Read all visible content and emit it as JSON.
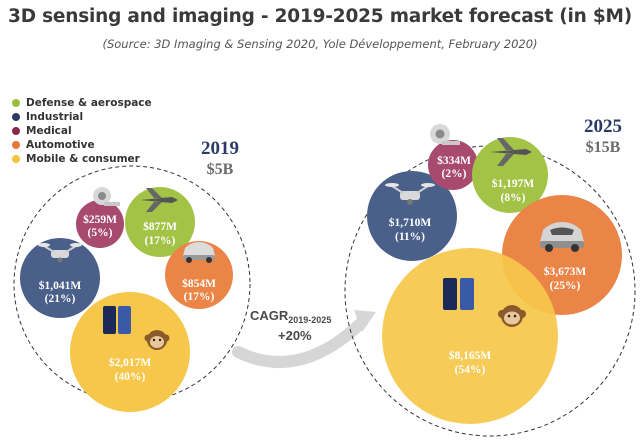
{
  "title": "3D sensing and imaging - 2019-2025 market forecast (in $M)",
  "subtitle": "(Source: 3D Imaging & Sensing 2020, Yole Développement, February 2020)",
  "legend": [
    {
      "name": "Defense & aerospace",
      "color": "#9cbd3b"
    },
    {
      "name": "Industrial",
      "color": "#2b3a67"
    },
    {
      "name": "Medical",
      "color": "#8a2a4a"
    },
    {
      "name": "Automotive",
      "color": "#e8743b"
    },
    {
      "name": "Mobile & consumer",
      "color": "#f5c342"
    }
  ],
  "cagr": {
    "label": "CAGR",
    "sub": "2019-2025",
    "value": "+20%"
  },
  "colors": {
    "year": "#2b3a67",
    "total": "#6b6b6b"
  },
  "icons": [
    "drone-icon",
    "medical-scanner-icon",
    "fighter-jet-icon",
    "car-icon",
    "smartphone-icon",
    "monkey-emoji-icon"
  ],
  "chart_data": [
    {
      "type": "bubble",
      "title": "2019",
      "total": "$5B",
      "series": [
        {
          "name": "Industrial",
          "value": 1041,
          "label": "$1,041M",
          "share": "(21%)"
        },
        {
          "name": "Medical",
          "value": 259,
          "label": "$259M",
          "share": "(5%)"
        },
        {
          "name": "Defense & aerospace",
          "value": 877,
          "label": "$877M",
          "share": "(17%)"
        },
        {
          "name": "Automotive",
          "value": 854,
          "label": "$854M",
          "share": "(17%)"
        },
        {
          "name": "Mobile & consumer",
          "value": 2017,
          "label": "$2,017M",
          "share": "(40%)"
        }
      ]
    },
    {
      "type": "bubble",
      "title": "2025",
      "total": "$15B",
      "series": [
        {
          "name": "Industrial",
          "value": 1710,
          "label": "$1,710M",
          "share": "(11%)"
        },
        {
          "name": "Medical",
          "value": 334,
          "label": "$334M",
          "share": "(2%)"
        },
        {
          "name": "Defense & aerospace",
          "value": 1197,
          "label": "$1,197M",
          "share": "(8%)"
        },
        {
          "name": "Automotive",
          "value": 3673,
          "label": "$3,673M",
          "share": "(25%)"
        },
        {
          "name": "Mobile & consumer",
          "value": 8165,
          "label": "$8,165M",
          "share": "(54%)"
        }
      ]
    }
  ]
}
